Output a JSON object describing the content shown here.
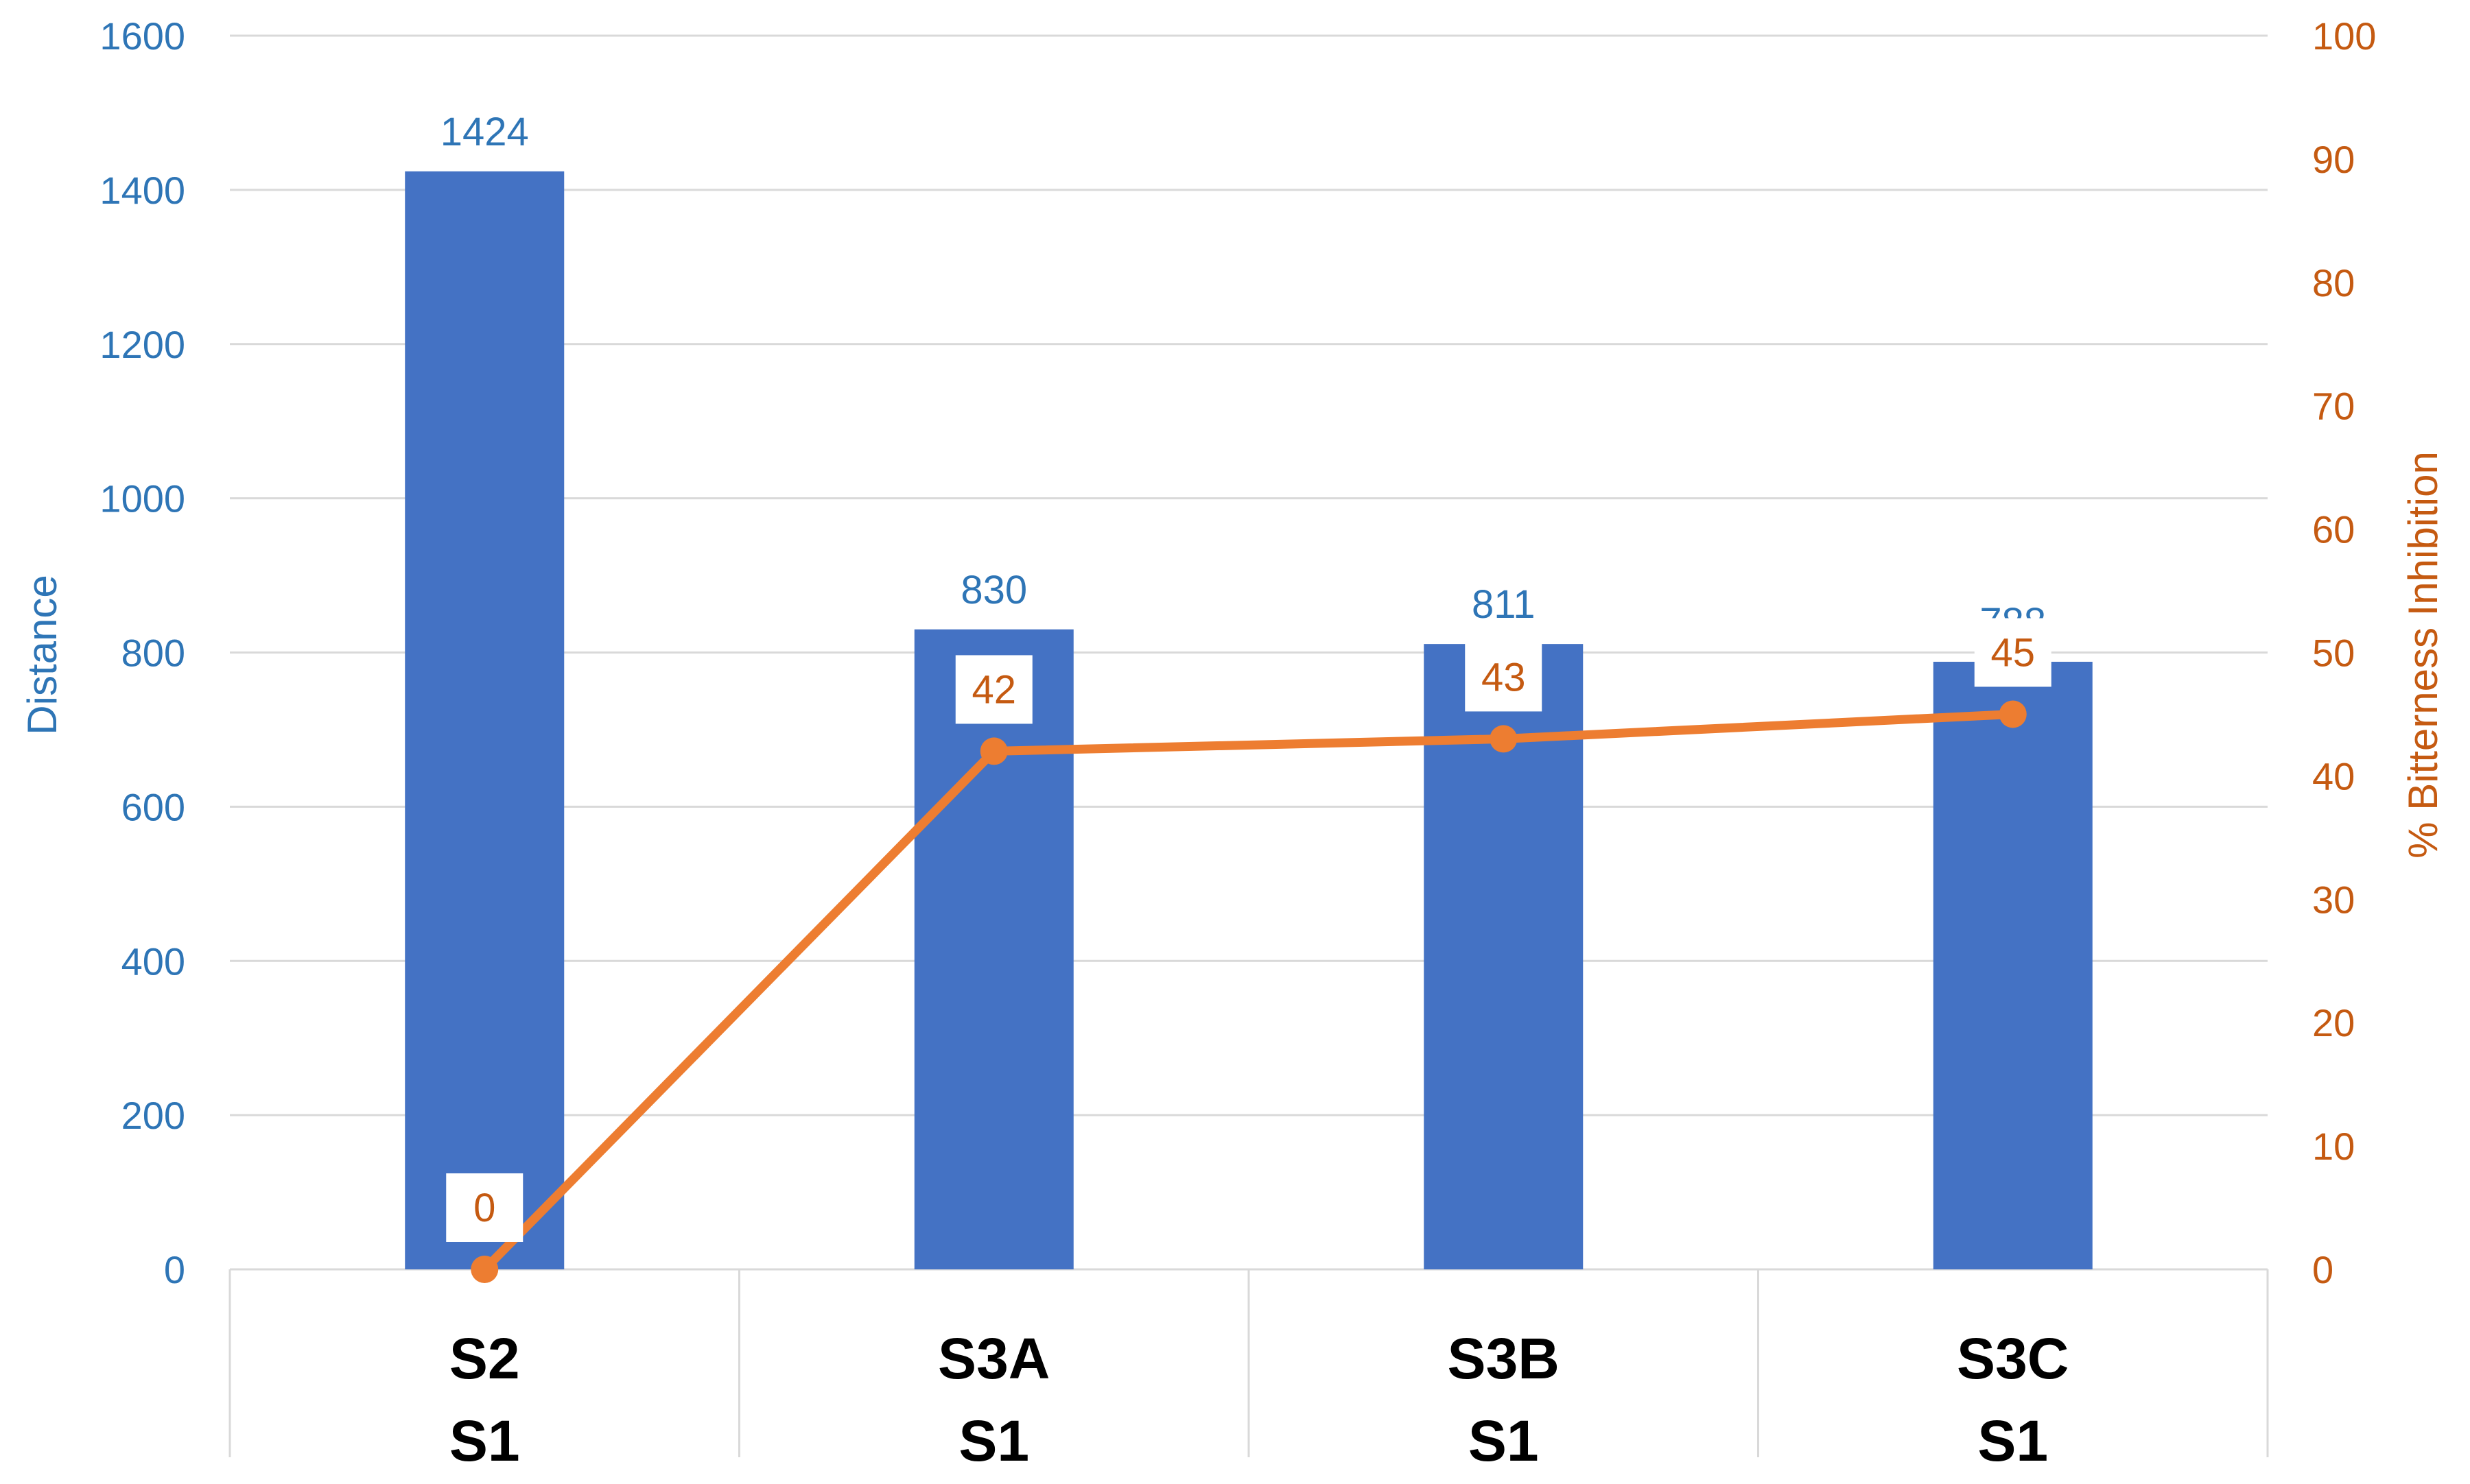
{
  "chart_data": {
    "type": "bar+line",
    "categories": [
      [
        "S2",
        "S1"
      ],
      [
        "S3A",
        "S1"
      ],
      [
        "S3B",
        "S1"
      ],
      [
        "S3C",
        "S1"
      ]
    ],
    "series": [
      {
        "name": "Distance",
        "type": "bar",
        "axis": "left",
        "color": "#4472c4",
        "values": [
          1424,
          830,
          811,
          788
        ]
      },
      {
        "name": "% Bitterness Inhibition",
        "type": "line",
        "axis": "right",
        "color": "#ed7d31",
        "values": [
          0,
          42,
          43,
          45
        ]
      }
    ],
    "y_left": {
      "label": "Distance",
      "ylim": [
        0,
        1600
      ],
      "ticks": [
        0,
        200,
        400,
        600,
        800,
        1000,
        1200,
        1400,
        1600
      ],
      "color": "#2e75b6"
    },
    "y_right": {
      "label": "% Bitterness Inhibition",
      "ylim": [
        0,
        100
      ],
      "ticks": [
        0,
        10,
        20,
        30,
        40,
        50,
        60,
        70,
        80,
        90,
        100
      ],
      "color": "#c55a11"
    },
    "grid": true,
    "legend": "none"
  }
}
